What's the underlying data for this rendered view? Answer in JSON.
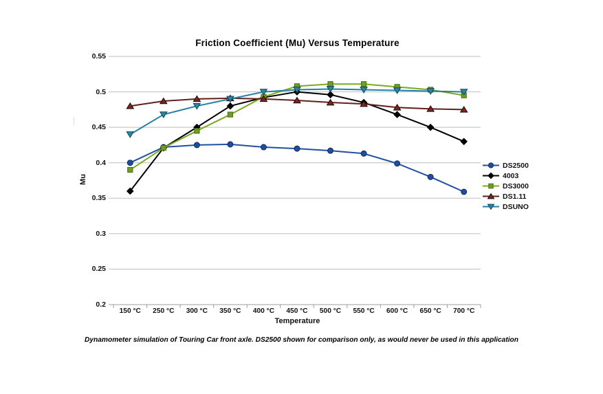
{
  "colors": {
    "background": "#ffffff",
    "gridline": "#bebebe",
    "axis": "#9c9c9c",
    "text": "#111111"
  },
  "chart_data": {
    "type": "line",
    "title": "Friction Coefficient (Mu) Versus Temperature",
    "xlabel": "Temperature",
    "ylabel": "Mu",
    "caption": "Dynamometer simulation of Touring Car front axle. DS2500 shown for comparison only, as would never be used in this application",
    "categories": [
      "150 °C",
      "250 °C",
      "300 °C",
      "350 °C",
      "400 °C",
      "450 °C",
      "500 °C",
      "550 °C",
      "600 °C",
      "650 °C",
      "700 °C"
    ],
    "x_values_celsius": [
      150,
      250,
      300,
      350,
      400,
      450,
      500,
      550,
      600,
      650,
      700
    ],
    "ylim": [
      0.2,
      0.55
    ],
    "y_tick_labels": [
      "0.55",
      "0.5",
      "0.45",
      "0.4",
      "0.35",
      "0.3",
      "0.25",
      "0.2"
    ],
    "grid": "horizontal",
    "legend_position": "right",
    "series": [
      {
        "name": "DS2500",
        "marker": "circle",
        "fill": "#1F4E9E",
        "line": "#1F4FA3",
        "edge": "#102C63",
        "values": [
          0.4,
          0.422,
          0.425,
          0.426,
          0.422,
          0.42,
          0.417,
          0.413,
          0.399,
          0.38,
          0.359
        ]
      },
      {
        "name": "4003",
        "marker": "diamond",
        "fill": "#000000",
        "line": "#000000",
        "edge": "#000000",
        "values": [
          0.36,
          0.421,
          0.45,
          0.48,
          0.492,
          0.5,
          0.496,
          0.485,
          0.468,
          0.45,
          0.43
        ]
      },
      {
        "name": "DS3000",
        "marker": "square",
        "fill": "#6E9F1F",
        "line": "#79AB20",
        "edge": "#4A6B15",
        "values": [
          0.39,
          0.421,
          0.445,
          0.468,
          0.493,
          0.508,
          0.511,
          0.511,
          0.507,
          0.503,
          0.495
        ]
      },
      {
        "name": "DS1.11",
        "marker": "triangle-up",
        "fill": "#7C2621",
        "line": "#621F1B",
        "edge": "#170806",
        "values": [
          0.48,
          0.487,
          0.49,
          0.491,
          0.49,
          0.488,
          0.485,
          0.483,
          0.478,
          0.476,
          0.475
        ]
      },
      {
        "name": "DSUNO",
        "marker": "triangle-down",
        "fill": "#2A85A8",
        "line": "#2280A4",
        "edge": "#0D4656",
        "values": [
          0.44,
          0.468,
          0.48,
          0.49,
          0.5,
          0.503,
          0.504,
          0.503,
          0.502,
          0.501,
          0.5
        ]
      }
    ]
  }
}
